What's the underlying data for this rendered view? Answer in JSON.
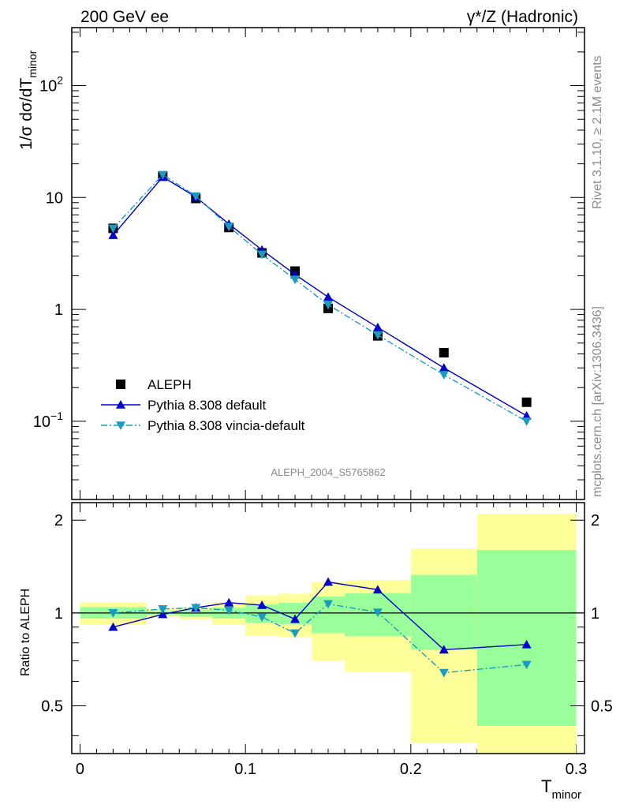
{
  "header": {
    "left": "200 GeV ee",
    "right": "γ*/Z (Hadronic)"
  },
  "side": {
    "rivet": "Rivet 3.1.10, ≥ 2.1M events",
    "mcplots": "mcplots.cern.ch [arXiv:1306.3436]"
  },
  "analysis_label": "ALEPH_2004_S5765862",
  "axes": {
    "ylabel_main": "1/σ  dσ/dT",
    "ylabel_main_sub": "minor",
    "ylabel_ratio": "Ratio to ALEPH",
    "xlabel": "T",
    "xlabel_sub": "minor"
  },
  "ticks": {
    "main_y": [
      {
        "value": 0.1,
        "base": "10",
        "exp": "−1"
      },
      {
        "value": 1,
        "label": "1"
      },
      {
        "value": 10,
        "label": "10"
      },
      {
        "value": 100,
        "base": "10",
        "exp": "2"
      }
    ],
    "ratio_y": [
      {
        "value": 0.5,
        "label": "0.5"
      },
      {
        "value": 1,
        "label": "1"
      },
      {
        "value": 2,
        "label": "2"
      }
    ],
    "x": [
      {
        "value": 0,
        "label": "0"
      },
      {
        "value": 0.1,
        "label": "0.1"
      },
      {
        "value": 0.2,
        "label": "0.2"
      },
      {
        "value": 0.3,
        "label": "0.3"
      }
    ]
  },
  "chart_data": [
    {
      "type": "scatter",
      "panel": "main",
      "xlim": [
        -0.005,
        0.305
      ],
      "ylim": [
        0.02,
        330
      ],
      "yscale": "log",
      "legend_position": "bottom-left",
      "series": [
        {
          "name": "ALEPH",
          "style": "square",
          "color": "#000000",
          "x": [
            0.02,
            0.05,
            0.07,
            0.09,
            0.11,
            0.13,
            0.15,
            0.18,
            0.22,
            0.27
          ],
          "y": [
            5.3,
            15.5,
            9.8,
            5.4,
            3.2,
            2.2,
            1.02,
            0.58,
            0.41,
            0.148
          ]
        },
        {
          "name": "Pythia 8.308 default",
          "style": "line-triangle-up",
          "color": "#0000cc",
          "x": [
            0.02,
            0.05,
            0.07,
            0.09,
            0.11,
            0.13,
            0.15,
            0.18,
            0.22,
            0.27
          ],
          "y": [
            4.6,
            15.3,
            10.1,
            5.8,
            3.4,
            2.05,
            1.29,
            0.69,
            0.3,
            0.112
          ]
        },
        {
          "name": "Pythia 8.308 vincia-default",
          "style": "dashdot-triangle-down",
          "color": "#1a9cc0",
          "x": [
            0.02,
            0.05,
            0.07,
            0.09,
            0.11,
            0.13,
            0.15,
            0.18,
            0.22,
            0.27
          ],
          "y": [
            5.3,
            16.0,
            10.3,
            5.5,
            3.1,
            1.85,
            1.1,
            0.59,
            0.26,
            0.1
          ]
        }
      ]
    },
    {
      "type": "line",
      "panel": "ratio",
      "xlim": [
        -0.005,
        0.305
      ],
      "ylim": [
        0.35,
        2.28
      ],
      "yscale": "log",
      "reference_line": 1,
      "bands": {
        "edges": [
          0,
          0.04,
          0.06,
          0.08,
          0.1,
          0.12,
          0.14,
          0.16,
          0.2,
          0.24,
          0.3
        ],
        "green_lo": [
          0.96,
          0.985,
          0.975,
          0.96,
          0.93,
          0.92,
          0.86,
          0.84,
          0.76,
          0.43
        ],
        "green_hi": [
          1.045,
          1.015,
          1.025,
          1.04,
          1.065,
          1.08,
          1.13,
          1.16,
          1.33,
          1.6
        ],
        "yellow_lo": [
          0.915,
          0.97,
          0.955,
          0.915,
          0.845,
          0.835,
          0.7,
          0.645,
          0.38,
          0.35
        ],
        "yellow_hi": [
          1.085,
          1.03,
          1.045,
          1.085,
          1.14,
          1.155,
          1.26,
          1.28,
          1.62,
          2.1
        ],
        "green_color": "#99ff99",
        "yellow_color": "#ffff99"
      },
      "series": [
        {
          "name": "Pythia 8.308 default",
          "style": "line-triangle-up",
          "color": "#0000cc",
          "x": [
            0.02,
            0.05,
            0.07,
            0.09,
            0.11,
            0.13,
            0.15,
            0.18,
            0.22,
            0.27
          ],
          "y": [
            0.9,
            0.99,
            1.04,
            1.08,
            1.06,
            0.955,
            1.26,
            1.19,
            0.76,
            0.79
          ]
        },
        {
          "name": "Pythia 8.308 vincia-default",
          "style": "dashdot-triangle-down",
          "color": "#1a9cc0",
          "x": [
            0.02,
            0.05,
            0.07,
            0.09,
            0.11,
            0.13,
            0.15,
            0.18,
            0.22,
            0.27
          ],
          "y": [
            1.0,
            1.03,
            1.04,
            1.02,
            0.97,
            0.86,
            1.07,
            1.005,
            0.64,
            0.68
          ]
        }
      ]
    }
  ]
}
